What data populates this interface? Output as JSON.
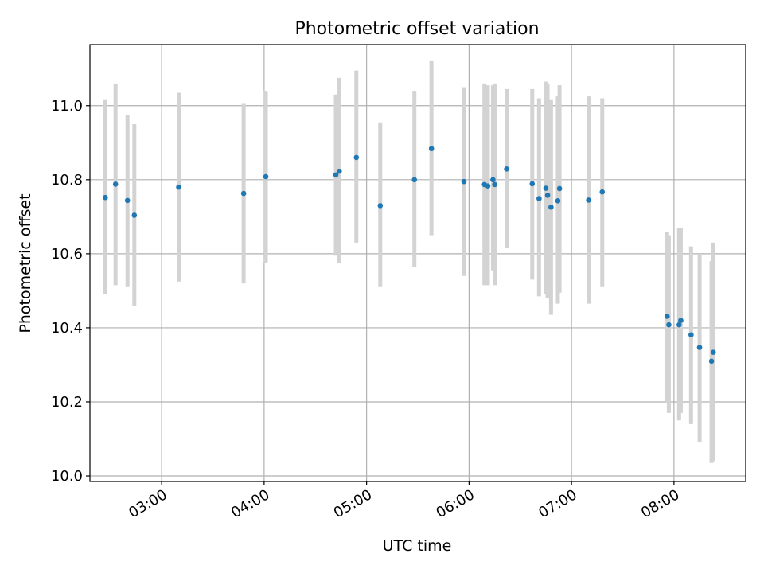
{
  "chart_data": {
    "type": "scatter",
    "title": "Photometric offset variation",
    "xlabel": "UTC time",
    "ylabel": "Photometric offset",
    "xlim": [
      "02:18",
      "08:42"
    ],
    "ylim": [
      9.985,
      11.165
    ],
    "x_ticks": [
      "03:00",
      "04:00",
      "05:00",
      "06:00",
      "07:00",
      "08:00"
    ],
    "y_ticks": [
      "10.0",
      "10.2",
      "10.4",
      "10.6",
      "10.8",
      "11.0"
    ],
    "grid": true,
    "colors": {
      "point": "#1f77b4",
      "errorbar": "#d3d3d3",
      "grid": "#b0b0b0"
    },
    "points": [
      {
        "x": "02:27",
        "y": 10.752,
        "ylow": 10.49,
        "yhigh": 11.015
      },
      {
        "x": "02:33",
        "y": 10.788,
        "ylow": 10.515,
        "yhigh": 11.06
      },
      {
        "x": "02:40",
        "y": 10.744,
        "ylow": 10.51,
        "yhigh": 10.975
      },
      {
        "x": "02:44",
        "y": 10.704,
        "ylow": 10.46,
        "yhigh": 10.95
      },
      {
        "x": "03:10",
        "y": 10.78,
        "ylow": 10.525,
        "yhigh": 11.035
      },
      {
        "x": "03:48",
        "y": 10.763,
        "ylow": 10.52,
        "yhigh": 11.005
      },
      {
        "x": "04:01",
        "y": 10.808,
        "ylow": 10.575,
        "yhigh": 11.04
      },
      {
        "x": "04:42",
        "y": 10.813,
        "ylow": 10.595,
        "yhigh": 11.03
      },
      {
        "x": "04:44",
        "y": 10.823,
        "ylow": 10.575,
        "yhigh": 11.075
      },
      {
        "x": "04:54",
        "y": 10.86,
        "ylow": 10.63,
        "yhigh": 11.095
      },
      {
        "x": "05:08",
        "y": 10.73,
        "ylow": 10.51,
        "yhigh": 10.955
      },
      {
        "x": "05:28",
        "y": 10.8,
        "ylow": 10.565,
        "yhigh": 11.04
      },
      {
        "x": "05:38",
        "y": 10.884,
        "ylow": 10.65,
        "yhigh": 11.12
      },
      {
        "x": "05:57",
        "y": 10.795,
        "ylow": 10.54,
        "yhigh": 11.05
      },
      {
        "x": "06:09",
        "y": 10.787,
        "ylow": 10.515,
        "yhigh": 11.06
      },
      {
        "x": "06:11",
        "y": 10.783,
        "ylow": 10.515,
        "yhigh": 11.055
      },
      {
        "x": "06:14",
        "y": 10.8,
        "ylow": 10.555,
        "yhigh": 11.055
      },
      {
        "x": "06:15",
        "y": 10.787,
        "ylow": 10.515,
        "yhigh": 11.06
      },
      {
        "x": "06:22",
        "y": 10.829,
        "ylow": 10.615,
        "yhigh": 11.045
      },
      {
        "x": "06:37",
        "y": 10.789,
        "ylow": 10.53,
        "yhigh": 11.045
      },
      {
        "x": "06:41",
        "y": 10.749,
        "ylow": 10.485,
        "yhigh": 11.02
      },
      {
        "x": "06:45",
        "y": 10.777,
        "ylow": 10.49,
        "yhigh": 11.065
      },
      {
        "x": "06:46",
        "y": 10.758,
        "ylow": 10.48,
        "yhigh": 11.06
      },
      {
        "x": "06:48",
        "y": 10.726,
        "ylow": 10.435,
        "yhigh": 11.015
      },
      {
        "x": "06:52",
        "y": 10.743,
        "ylow": 10.465,
        "yhigh": 11.025
      },
      {
        "x": "06:53",
        "y": 10.776,
        "ylow": 10.495,
        "yhigh": 11.055
      },
      {
        "x": "07:10",
        "y": 10.745,
        "ylow": 10.465,
        "yhigh": 11.025
      },
      {
        "x": "07:18",
        "y": 10.767,
        "ylow": 10.51,
        "yhigh": 11.02
      },
      {
        "x": "07:56",
        "y": 10.431,
        "ylow": 10.2,
        "yhigh": 10.66
      },
      {
        "x": "07:57",
        "y": 10.408,
        "ylow": 10.17,
        "yhigh": 10.65
      },
      {
        "x": "08:03",
        "y": 10.408,
        "ylow": 10.15,
        "yhigh": 10.67
      },
      {
        "x": "08:04",
        "y": 10.42,
        "ylow": 10.17,
        "yhigh": 10.67
      },
      {
        "x": "08:10",
        "y": 10.381,
        "ylow": 10.14,
        "yhigh": 10.62
      },
      {
        "x": "08:15",
        "y": 10.347,
        "ylow": 10.09,
        "yhigh": 10.6
      },
      {
        "x": "08:22",
        "y": 10.31,
        "ylow": 10.035,
        "yhigh": 10.58
      },
      {
        "x": "08:23",
        "y": 10.334,
        "ylow": 10.04,
        "yhigh": 10.63
      }
    ]
  }
}
